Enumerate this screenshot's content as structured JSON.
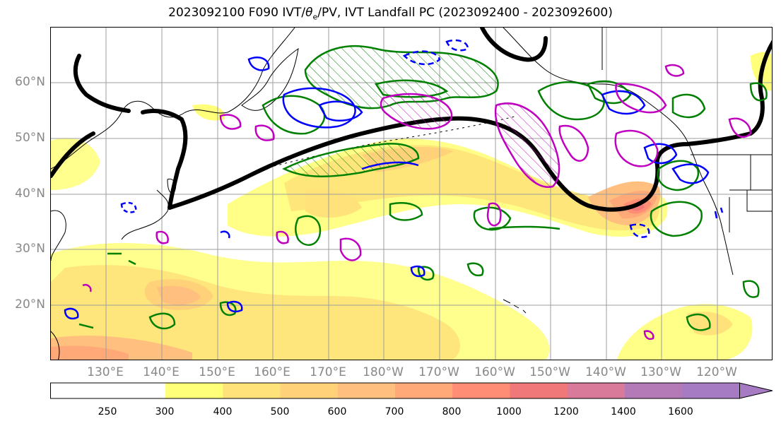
{
  "title_main": "2023092100 F090 IVT/",
  "title_theta": "θ",
  "title_sub": "e",
  "title_rest": "/PV, IVT Landfall PC (2023092400 - 2023092600)",
  "lat_labels": [
    "60°N",
    "50°N",
    "40°N",
    "30°N",
    "20°N"
  ],
  "lon_labels": [
    "130°E",
    "140°E",
    "150°E",
    "160°E",
    "170°E",
    "180°W",
    "170°W",
    "160°W",
    "150°W",
    "140°W",
    "130°W",
    "120°W"
  ],
  "colorbar": {
    "levels": [
      "250",
      "300",
      "400",
      "500",
      "600",
      "700",
      "800",
      "1000",
      "1200",
      "1400",
      "1600"
    ],
    "colors": [
      "#ffffff",
      "#ffff7a",
      "#ffe37a",
      "#ffd27a",
      "#ffbf7f",
      "#ffa878",
      "#ff8c75",
      "#f07878",
      "#d97a9a",
      "#b47ab8",
      "#a77ac4"
    ],
    "extend": "max"
  },
  "colors": {
    "theta_e_contour": "#008000",
    "pv_contour": "#0000ff",
    "landfall_pc": "#c000c0",
    "jet_contour": "#000000",
    "coastline": "#000000",
    "gridline": "#9e9e9e"
  }
}
